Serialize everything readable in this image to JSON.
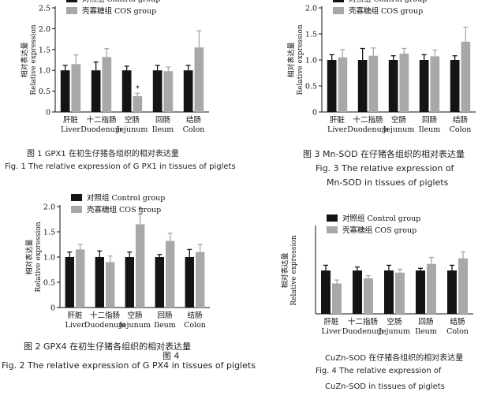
{
  "legend": {
    "control": "对照组  Control group",
    "cos": "壳寡糖组  COS group"
  },
  "ylabel_cn": "相对表达量",
  "ylabel_en": "Relative expression",
  "tissues": [
    {
      "cn": "肝脏",
      "en": "Liver"
    },
    {
      "cn": "十二指肠",
      "en": "Duodenum"
    },
    {
      "cn": "空肠",
      "en": "Jejunum"
    },
    {
      "cn": "回肠",
      "en": "Ileum"
    },
    {
      "cn": "结肠",
      "en": "Colon"
    }
  ],
  "captions": {
    "fig1_cn": "图 1   GPX1 在初生仔猪各组织的相对表达量",
    "fig1_en": "Fig. 1 The relative expression of G PX1 in tissues of piglets",
    "fig2_cn": "图 2  GPX4 在初生仔猪各组织的相对表达量",
    "fig2_extra": "图 4",
    "fig2_en": "Fig. 2 The relative expression of G PX4 in tissues of piglets",
    "fig3_cn": "图 3  Mn-SOD 在仔猪各组织的相对表达量",
    "fig3_en1": "Fig. 3  The relative expression of",
    "fig3_en2": "Mn-SOD in tissues of piglets",
    "fig4_cn": "CuZn-SOD 在仔猪各组织的相对表达量",
    "fig4_en1": "Fig. 4  The relative expression of",
    "fig4_en2": "CuZn-SOD in tissues of piglets"
  },
  "colors": {
    "control": "#141414",
    "cos": "#a8a8a8"
  },
  "chart_data": [
    {
      "type": "bar",
      "id": "fig1",
      "categories": [
        "Liver",
        "Duodenum",
        "Jejunum",
        "Ileum",
        "Colon"
      ],
      "ylim": [
        0,
        2.5
      ],
      "yticks": [
        "0",
        "0.5",
        "1.0",
        "1.5",
        "2.0",
        "2.5"
      ],
      "ytick_values": [
        0,
        0.5,
        1.0,
        1.5,
        2.0,
        2.5
      ],
      "series": [
        {
          "name": "对照组  Control group",
          "values": [
            1.0,
            1.0,
            1.0,
            1.0,
            1.0
          ],
          "errors": [
            0.12,
            0.2,
            0.1,
            0.12,
            0.12
          ]
        },
        {
          "name": "壳寡糖组  COS group",
          "values": [
            1.15,
            1.32,
            0.38,
            0.98,
            1.55
          ],
          "errors": [
            0.22,
            0.2,
            0.07,
            0.1,
            0.4
          ]
        }
      ],
      "annotations": [
        {
          "category": "Jejunum",
          "series": 1,
          "text": "*"
        }
      ]
    },
    {
      "type": "bar",
      "id": "fig2",
      "categories": [
        "Liver",
        "Duodenum",
        "Jejunum",
        "Ileum",
        "Colon"
      ],
      "ylim": [
        0,
        2.0
      ],
      "yticks": [
        "0",
        "0.5",
        "1.0",
        "1.5",
        "2.0"
      ],
      "ytick_values": [
        0,
        0.5,
        1.0,
        1.5,
        2.0
      ],
      "series": [
        {
          "name": "对照组  Control group",
          "values": [
            1.0,
            1.0,
            1.0,
            1.0,
            1.0
          ],
          "errors": [
            0.1,
            0.12,
            0.1,
            0.05,
            0.15
          ]
        },
        {
          "name": "壳寡糖组  COS group",
          "values": [
            1.15,
            0.9,
            1.65,
            1.32,
            1.1
          ],
          "errors": [
            0.1,
            0.12,
            0.2,
            0.15,
            0.15
          ]
        }
      ],
      "annotations": [
        {
          "category": "Jejunum",
          "series": 1,
          "text": "*"
        }
      ]
    },
    {
      "type": "bar",
      "id": "fig3",
      "categories": [
        "Liver",
        "Duodenum",
        "Jejunum",
        "Ileum",
        "Colon"
      ],
      "ylim": [
        0,
        2.0
      ],
      "yticks": [
        "0",
        "0.5",
        "1.0",
        "1.5",
        "2.0"
      ],
      "ytick_values": [
        0,
        0.5,
        1.0,
        1.5,
        2.0
      ],
      "series": [
        {
          "name": "对照组  Control group",
          "values": [
            1.0,
            1.0,
            1.0,
            1.0,
            1.0
          ],
          "errors": [
            0.1,
            0.22,
            0.08,
            0.1,
            0.08
          ]
        },
        {
          "name": "壳寡糖组  COS group",
          "values": [
            1.05,
            1.08,
            1.12,
            1.07,
            1.35
          ],
          "errors": [
            0.15,
            0.15,
            0.1,
            0.12,
            0.28
          ]
        }
      ],
      "annotations": []
    },
    {
      "type": "bar",
      "id": "fig4",
      "categories": [
        "Liver",
        "Duodenum",
        "Jejunum",
        "Ileum",
        "Colon"
      ],
      "ylim": [
        0,
        2.0
      ],
      "yticks": [],
      "ytick_values": [],
      "series": [
        {
          "name": "对照组  Control group",
          "values": [
            1.0,
            1.0,
            1.0,
            1.0,
            1.0
          ],
          "errors": [
            0.12,
            0.08,
            0.12,
            0.05,
            0.12
          ]
        },
        {
          "name": "壳寡糖组  COS group",
          "values": [
            0.7,
            0.82,
            0.95,
            1.15,
            1.28
          ],
          "errors": [
            0.08,
            0.06,
            0.08,
            0.15,
            0.15
          ]
        }
      ],
      "annotations": []
    }
  ]
}
